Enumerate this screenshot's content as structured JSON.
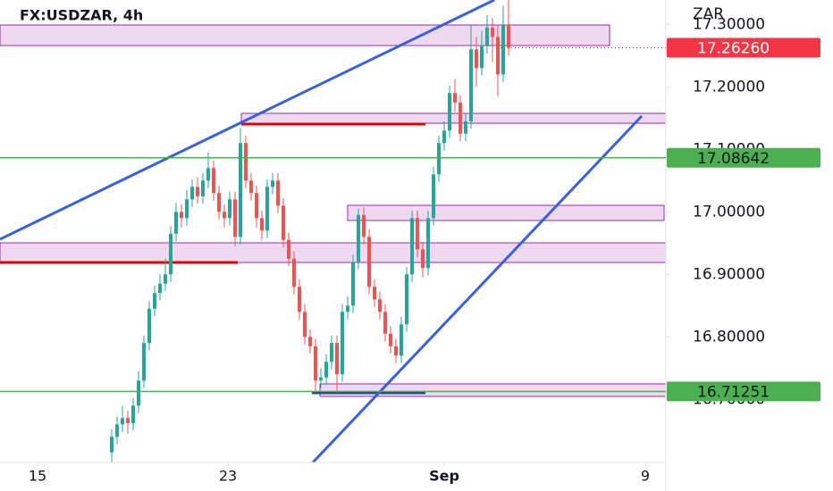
{
  "chart_data": {
    "type": "candlestick",
    "title": "FX:USDZAR, 4h",
    "currency": "ZAR",
    "x": [
      0,
      1,
      2,
      3,
      4,
      5,
      6,
      7,
      8,
      9,
      10,
      11,
      12,
      13,
      14,
      15,
      16,
      17,
      18,
      19,
      20,
      21,
      22,
      23,
      24,
      25,
      26,
      27,
      28,
      29,
      30,
      31,
      32,
      33,
      34,
      35,
      36,
      37,
      38,
      39,
      40,
      41,
      42,
      43,
      44,
      45,
      46,
      47,
      48,
      49,
      50,
      51,
      52,
      53,
      54,
      55,
      56,
      57,
      58,
      59,
      60,
      61,
      62,
      63,
      64,
      65,
      66,
      67,
      68,
      69,
      70,
      71,
      72,
      73,
      74
    ],
    "open": [
      16.615,
      16.64,
      16.66,
      16.67,
      16.662,
      16.69,
      16.73,
      16.79,
      16.845,
      16.87,
      16.885,
      16.9,
      16.965,
      17.0,
      16.99,
      17.02,
      17.04,
      17.025,
      17.05,
      17.07,
      17.03,
      17.0,
      16.99,
      17.02,
      16.96,
      17.11,
      17.05,
      17.03,
      16.99,
      16.97,
      17.04,
      17.05,
      17.01,
      16.955,
      16.925,
      16.88,
      16.84,
      16.8,
      16.785,
      16.73,
      16.735,
      16.76,
      16.79,
      16.74,
      16.84,
      16.85,
      16.92,
      16.995,
      16.96,
      16.88,
      16.86,
      16.84,
      16.805,
      16.785,
      16.77,
      16.82,
      16.9,
      16.99,
      16.94,
      16.91,
      16.99,
      17.06,
      17.11,
      17.13,
      17.19,
      17.175,
      17.125,
      17.145,
      17.26,
      17.23,
      17.265,
      17.295,
      17.28,
      17.22,
      17.3
    ],
    "high": [
      16.652,
      16.672,
      16.69,
      16.682,
      16.702,
      16.745,
      16.802,
      16.857,
      16.882,
      16.9,
      16.925,
      16.977,
      17.015,
      17.012,
      17.035,
      17.052,
      17.055,
      17.062,
      17.095,
      17.082,
      17.042,
      17.012,
      17.032,
      17.032,
      17.135,
      17.122,
      17.062,
      17.042,
      17.002,
      17.052,
      17.062,
      17.062,
      17.022,
      16.967,
      16.937,
      16.892,
      16.852,
      16.812,
      16.797,
      16.75,
      16.772,
      16.802,
      16.802,
      16.852,
      16.865,
      16.932,
      17.005,
      17.007,
      16.972,
      16.892,
      16.872,
      16.852,
      16.817,
      16.797,
      16.832,
      16.912,
      17.002,
      17.002,
      16.952,
      17.002,
      17.072,
      17.122,
      17.145,
      17.202,
      17.212,
      17.187,
      17.157,
      17.3,
      17.28,
      17.29,
      17.315,
      17.31,
      17.3,
      17.33,
      17.345
    ],
    "low": [
      16.6,
      16.628,
      16.648,
      16.645,
      16.65,
      16.678,
      16.718,
      16.778,
      16.833,
      16.858,
      16.873,
      16.888,
      16.953,
      16.975,
      16.978,
      17.008,
      17.013,
      17.013,
      17.038,
      17.018,
      16.988,
      16.975,
      16.978,
      16.945,
      16.948,
      17.038,
      17.018,
      16.975,
      16.955,
      16.958,
      17.028,
      16.998,
      16.943,
      16.913,
      16.868,
      16.828,
      16.788,
      16.773,
      16.712,
      16.718,
      16.723,
      16.748,
      16.713,
      16.728,
      16.828,
      16.838,
      16.908,
      16.948,
      16.868,
      16.848,
      16.828,
      16.793,
      16.773,
      16.758,
      16.758,
      16.808,
      16.888,
      16.928,
      16.895,
      16.898,
      16.978,
      17.048,
      17.098,
      17.118,
      17.16,
      17.113,
      17.113,
      17.133,
      17.2,
      17.218,
      17.253,
      17.24,
      17.185,
      17.208,
      17.25
    ],
    "close": [
      16.64,
      16.66,
      16.67,
      16.662,
      16.69,
      16.73,
      16.79,
      16.845,
      16.87,
      16.885,
      16.9,
      16.965,
      17.0,
      16.99,
      17.02,
      17.04,
      17.025,
      17.05,
      17.07,
      17.03,
      17.0,
      16.99,
      17.02,
      16.96,
      17.11,
      17.05,
      17.03,
      16.99,
      16.97,
      17.04,
      17.05,
      17.01,
      16.955,
      16.925,
      16.88,
      16.84,
      16.8,
      16.785,
      16.73,
      16.735,
      16.76,
      16.79,
      16.74,
      16.84,
      16.85,
      16.92,
      16.995,
      16.96,
      16.88,
      16.86,
      16.84,
      16.805,
      16.785,
      16.77,
      16.82,
      16.9,
      16.99,
      16.94,
      16.91,
      16.99,
      17.06,
      17.11,
      17.13,
      17.19,
      17.175,
      17.125,
      17.145,
      17.26,
      17.23,
      17.265,
      17.295,
      17.28,
      17.22,
      17.3,
      17.2626
    ],
    "up_color": "#26a69a",
    "down_color": "#ef5350",
    "xlim": [
      -20.83,
      103.33
    ],
    "xticks": [
      {
        "value": -13.83,
        "label": "15"
      },
      {
        "value": 21.67,
        "label": "23"
      },
      {
        "value": 62,
        "label": "Sep"
      },
      {
        "value": 99.5,
        "label": "9"
      }
    ],
    "ylim": [
      16.599,
      17.339
    ],
    "yticks": [
      {
        "value": 16.7,
        "label": "16.70000"
      },
      {
        "value": 16.8,
        "label": "16.80000"
      },
      {
        "value": 16.9,
        "label": "16.90000"
      },
      {
        "value": 17.0,
        "label": "17.00000"
      },
      {
        "value": 17.1,
        "label": "17.10000"
      },
      {
        "value": 17.2,
        "label": "17.20000"
      },
      {
        "value": 17.3,
        "label": "17.30000"
      }
    ],
    "grid": false,
    "last_price": {
      "value": 17.2626,
      "label": "17.26260",
      "color": "#f23645"
    },
    "levels": [
      {
        "value": 17.08642,
        "label": "17.08642",
        "color": "#4caf50"
      },
      {
        "value": 16.71251,
        "label": "16.71251",
        "color": "#4caf50"
      }
    ]
  }
}
